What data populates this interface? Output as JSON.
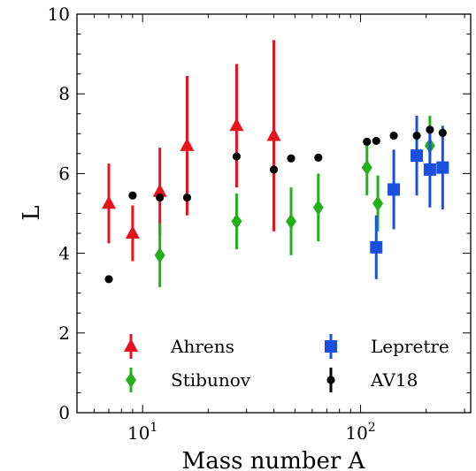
{
  "chart_data": {
    "type": "scatter",
    "xscale": "log",
    "xlim": [
      5,
      320
    ],
    "ylim": [
      0,
      10
    ],
    "xlabel": "Mass number A",
    "ylabel": "L",
    "grid": false,
    "legend_position": "bottom",
    "xticks": [
      {
        "value": 10,
        "base": "10",
        "exp": "1"
      },
      {
        "value": 100,
        "base": "10",
        "exp": "2"
      }
    ],
    "yticks": [
      0,
      2,
      4,
      6,
      8,
      10
    ],
    "ytick_labels": [
      "0",
      "2",
      "4",
      "6",
      "8",
      "10"
    ],
    "series": [
      {
        "name": "Ahrens",
        "marker": "triangle",
        "color": "#e8141b",
        "points": [
          {
            "x": 7,
            "y": 5.25,
            "err": 1.0
          },
          {
            "x": 9,
            "y": 4.5,
            "err": 0.7
          },
          {
            "x": 12,
            "y": 5.55,
            "err": 1.1
          },
          {
            "x": 16,
            "y": 6.7,
            "err": 1.75
          },
          {
            "x": 27,
            "y": 7.2,
            "err": 1.55
          },
          {
            "x": 40,
            "y": 6.95,
            "err": 2.4
          }
        ]
      },
      {
        "name": "Stibunov",
        "marker": "diamond",
        "color": "#23b01b",
        "points": [
          {
            "x": 12,
            "y": 3.95,
            "err": 0.8
          },
          {
            "x": 27,
            "y": 4.8,
            "err": 0.7
          },
          {
            "x": 48,
            "y": 4.8,
            "err": 0.85
          },
          {
            "x": 64,
            "y": 5.15,
            "err": 0.85
          },
          {
            "x": 107,
            "y": 6.15,
            "err": 0.7
          },
          {
            "x": 120,
            "y": 5.25,
            "err": 0.7
          },
          {
            "x": 208,
            "y": 6.7,
            "err": 0.75
          }
        ]
      },
      {
        "name": "Lepretre",
        "marker": "square",
        "color": "#1a4fe0",
        "points": [
          {
            "x": 118,
            "y": 4.15,
            "err": 0.8
          },
          {
            "x": 142,
            "y": 5.6,
            "err": 1.0
          },
          {
            "x": 181,
            "y": 6.45,
            "err": 1.0
          },
          {
            "x": 208,
            "y": 6.1,
            "err": 0.95
          },
          {
            "x": 238,
            "y": 6.15,
            "err": 1.05
          }
        ]
      },
      {
        "name": "AV18",
        "marker": "circle",
        "color": "#000000",
        "points": [
          {
            "x": 7,
            "y": 3.35
          },
          {
            "x": 9,
            "y": 5.45
          },
          {
            "x": 12,
            "y": 5.4
          },
          {
            "x": 16,
            "y": 5.4
          },
          {
            "x": 27,
            "y": 6.43
          },
          {
            "x": 40,
            "y": 6.1
          },
          {
            "x": 48,
            "y": 6.38
          },
          {
            "x": 64,
            "y": 6.4
          },
          {
            "x": 107,
            "y": 6.8
          },
          {
            "x": 118,
            "y": 6.82
          },
          {
            "x": 142,
            "y": 6.95
          },
          {
            "x": 181,
            "y": 6.95
          },
          {
            "x": 208,
            "y": 7.1
          },
          {
            "x": 238,
            "y": 7.02
          }
        ]
      }
    ]
  }
}
